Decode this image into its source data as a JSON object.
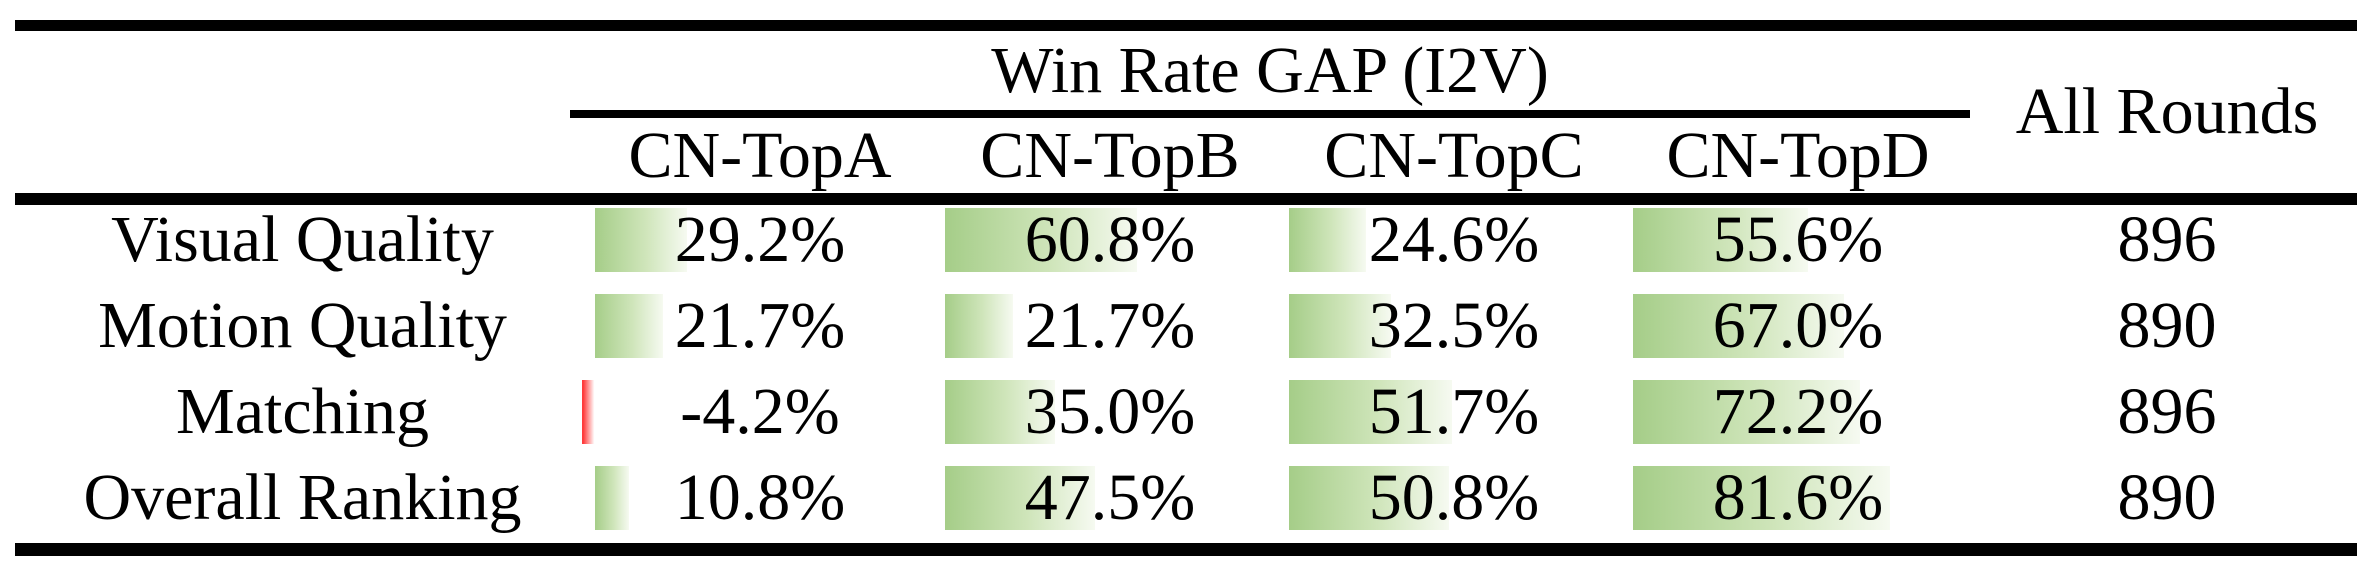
{
  "table": {
    "header": {
      "group_title": "Win Rate GAP (I2V)",
      "all_rounds": "All Rounds",
      "columns": [
        "CN-TopA",
        "CN-TopB",
        "CN-TopC",
        "CN-TopD"
      ]
    },
    "rows": [
      {
        "label": "Visual Quality",
        "cells": [
          {
            "text": "29.2%",
            "value": 29.2
          },
          {
            "text": "60.8%",
            "value": 60.8
          },
          {
            "text": "24.6%",
            "value": 24.6
          },
          {
            "text": "55.6%",
            "value": 55.6
          }
        ],
        "all_rounds": "896"
      },
      {
        "label": "Motion Quality",
        "cells": [
          {
            "text": "21.7%",
            "value": 21.7
          },
          {
            "text": "21.7%",
            "value": 21.7
          },
          {
            "text": "32.5%",
            "value": 32.5
          },
          {
            "text": "67.0%",
            "value": 67.0
          }
        ],
        "all_rounds": "890"
      },
      {
        "label": "Matching",
        "cells": [
          {
            "text": "-4.2%",
            "value": -4.2
          },
          {
            "text": "35.0%",
            "value": 35.0
          },
          {
            "text": "51.7%",
            "value": 51.7
          },
          {
            "text": "72.2%",
            "value": 72.2
          }
        ],
        "all_rounds": "896"
      },
      {
        "label": "Overall Ranking",
        "cells": [
          {
            "text": "10.8%",
            "value": 10.8
          },
          {
            "text": "47.5%",
            "value": 47.5
          },
          {
            "text": "50.8%",
            "value": 50.8
          },
          {
            "text": "81.6%",
            "value": 81.6
          }
        ],
        "all_rounds": "890"
      }
    ],
    "colors": {
      "positive_bar": "#a5cd88",
      "positive_bar_mid": "#cfe5ba",
      "positive_bar_fade": "#f6faf1",
      "negative_bar": "#ff3b3b",
      "negative_bar_fade": "#ffffff",
      "rule": "#000000"
    }
  }
}
